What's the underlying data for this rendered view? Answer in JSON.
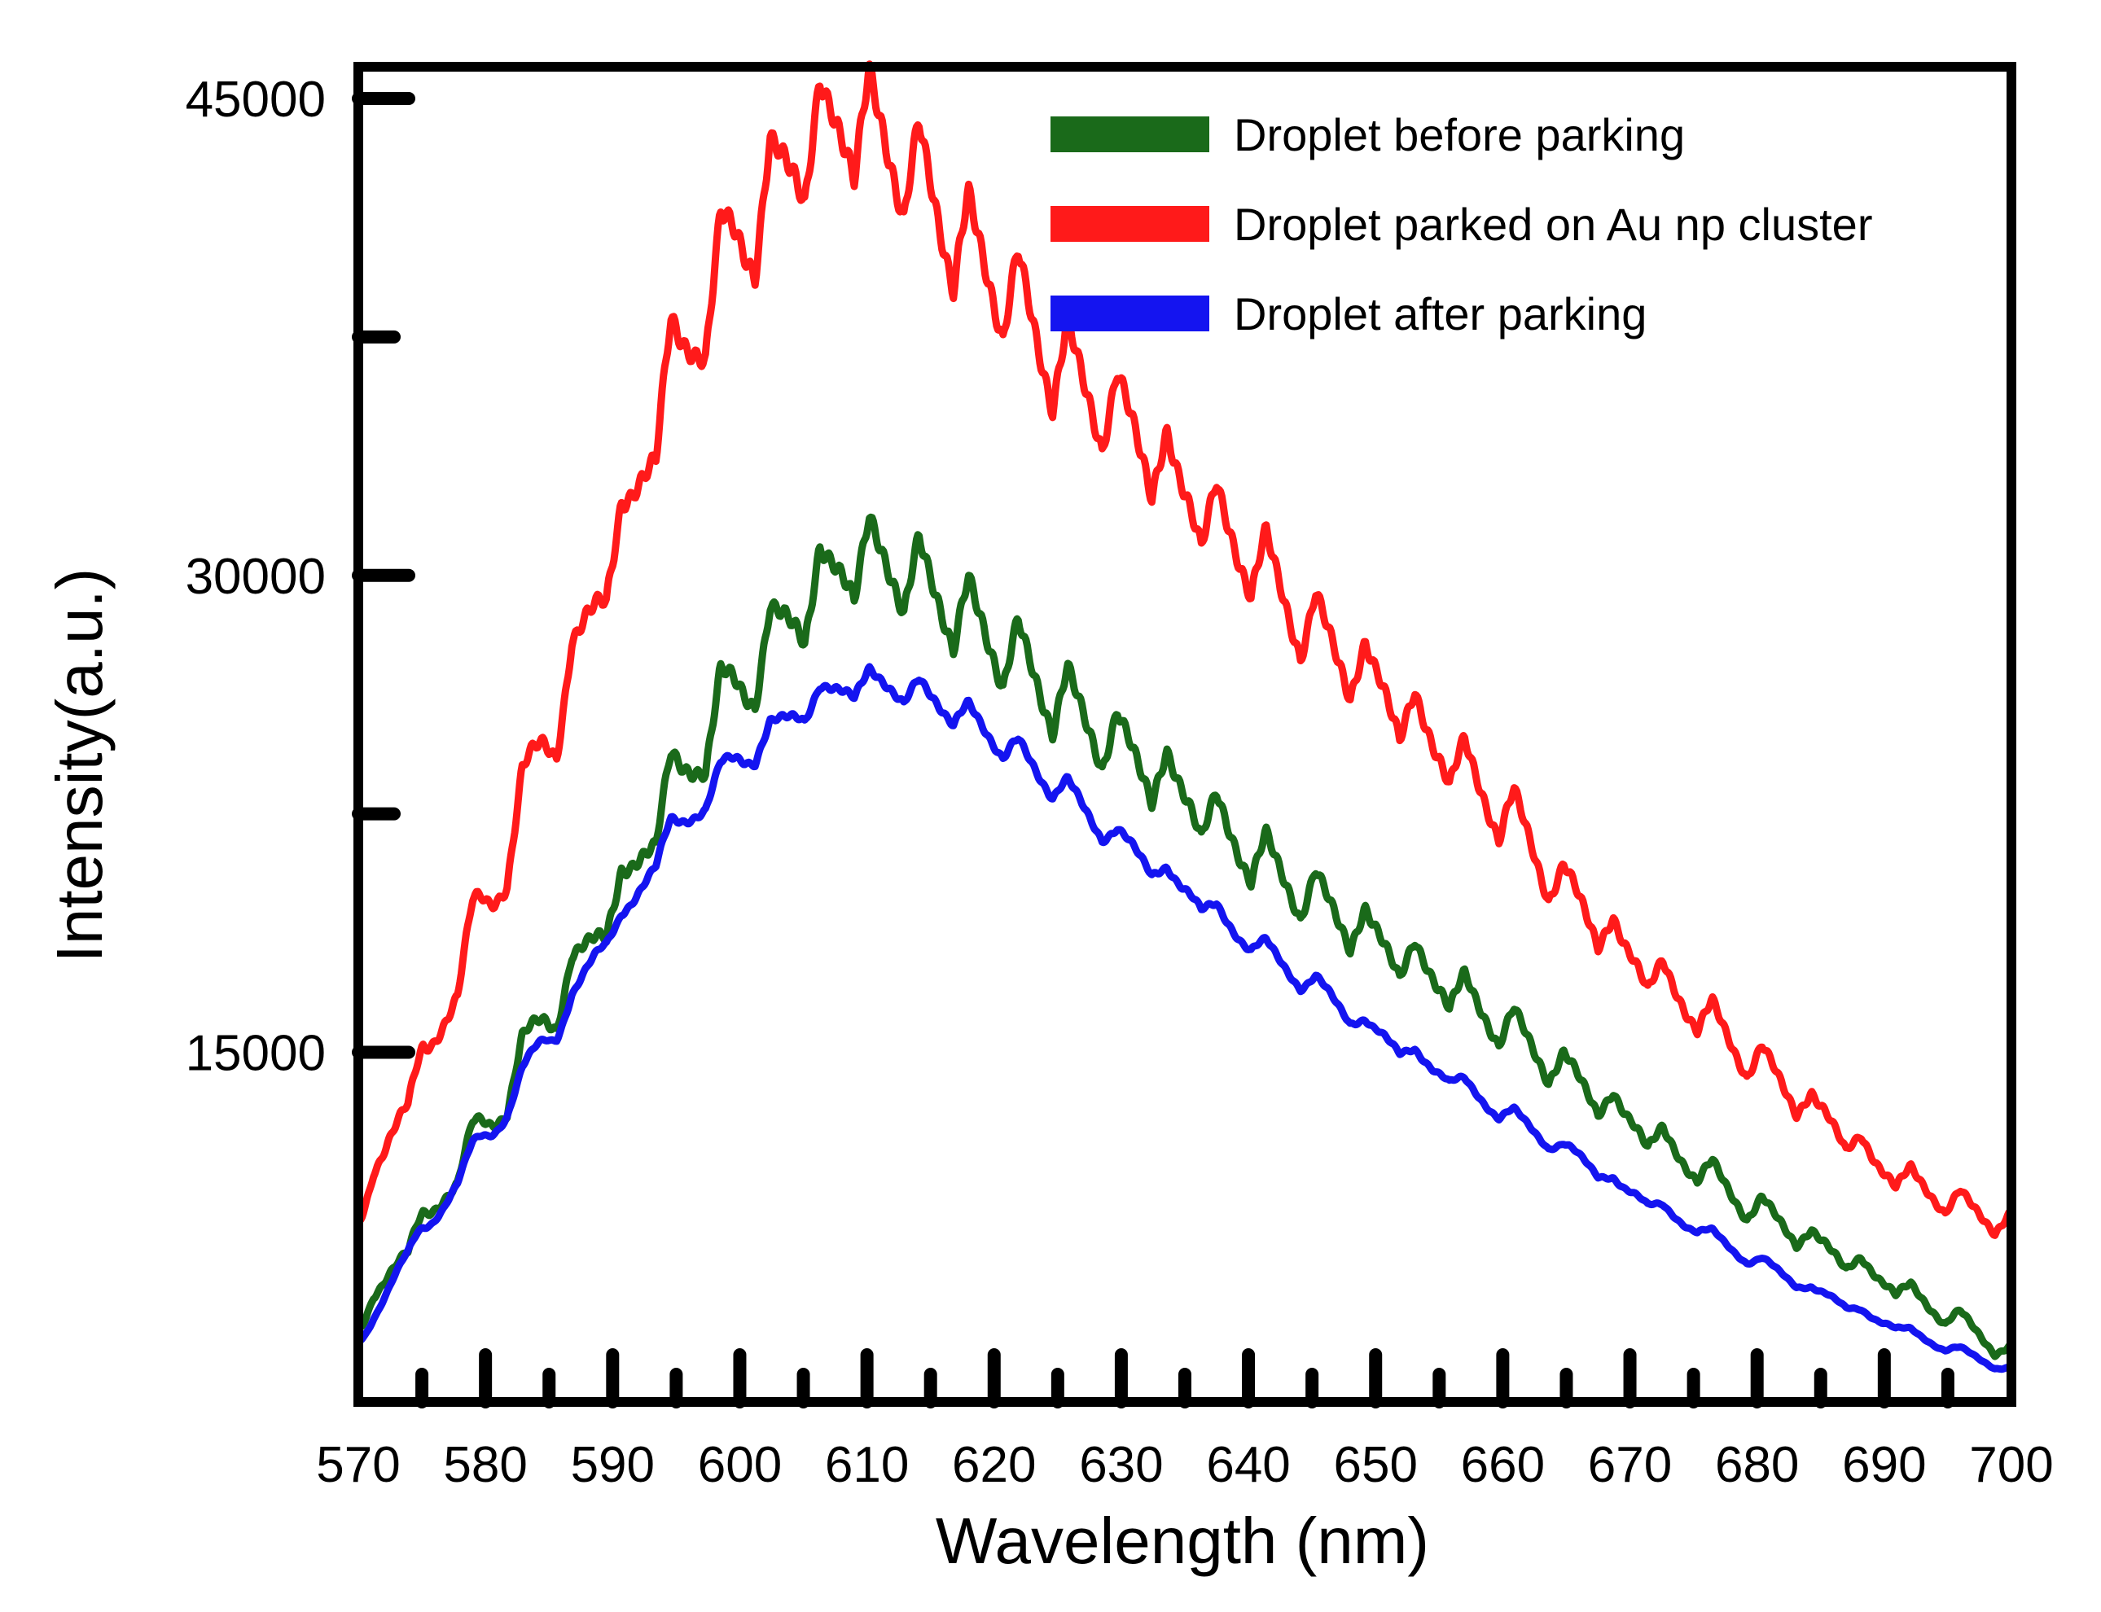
{
  "chart_data": {
    "type": "line",
    "title": "",
    "xlabel": "Wavelength (nm)",
    "ylabel": "Intensity(a.u.)",
    "xlim": [
      570,
      700
    ],
    "ylim": [
      4000,
      46000
    ],
    "x_ticks": [
      570,
      580,
      590,
      600,
      610,
      620,
      630,
      640,
      650,
      660,
      670,
      680,
      690,
      700
    ],
    "y_ticks": [
      15000,
      30000,
      45000
    ],
    "grid": false,
    "legend_position": "top-right",
    "series": [
      {
        "name": "Droplet before parking",
        "color": "#1a6a1a",
        "x": [
          570,
          575,
          580,
          585,
          590,
          595,
          600,
          605,
          609,
          613,
          617,
          621,
          625,
          630,
          635,
          640,
          645,
          650,
          655,
          660,
          665,
          670,
          675,
          680,
          685,
          690,
          695,
          700
        ],
        "y": [
          6500,
          9500,
          12600,
          16200,
          19500,
          23400,
          26500,
          29000,
          30500,
          30000,
          28800,
          27500,
          26000,
          24500,
          23000,
          21200,
          19800,
          18500,
          17200,
          15800,
          14300,
          12800,
          11400,
          10000,
          8900,
          7800,
          6700,
          5500
        ]
      },
      {
        "name": "Droplet parked on Au np cluster",
        "color": "#ff1a1a",
        "x": [
          570,
          575,
          580,
          585,
          590,
          595,
          600,
          605,
          609,
          613,
          617,
          621,
          625,
          630,
          635,
          640,
          645,
          650,
          655,
          660,
          665,
          670,
          675,
          680,
          685,
          690,
          695,
          700
        ],
        "y": [
          10000,
          14500,
          19500,
          25000,
          30500,
          36500,
          40500,
          43300,
          44200,
          42800,
          40500,
          38800,
          36500,
          34800,
          32500,
          30500,
          28200,
          26500,
          24500,
          22500,
          20000,
          18000,
          16300,
          14600,
          13000,
          11300,
          10300,
          9500
        ]
      },
      {
        "name": "Droplet after parking",
        "color": "#1414f0",
        "x": [
          570,
          575,
          580,
          585,
          590,
          595,
          600,
          605,
          609,
          613,
          617,
          621,
          625,
          630,
          635,
          640,
          645,
          650,
          655,
          660,
          665,
          670,
          675,
          680,
          685,
          690,
          695,
          700
        ],
        "y": [
          6000,
          9300,
          12300,
          15500,
          18800,
          22000,
          24200,
          25800,
          26600,
          26400,
          25700,
          24600,
          23300,
          21600,
          20100,
          18500,
          17100,
          15600,
          14400,
          13100,
          11900,
          10600,
          9500,
          8400,
          7400,
          6500,
          5700,
          5000
        ]
      }
    ]
  }
}
